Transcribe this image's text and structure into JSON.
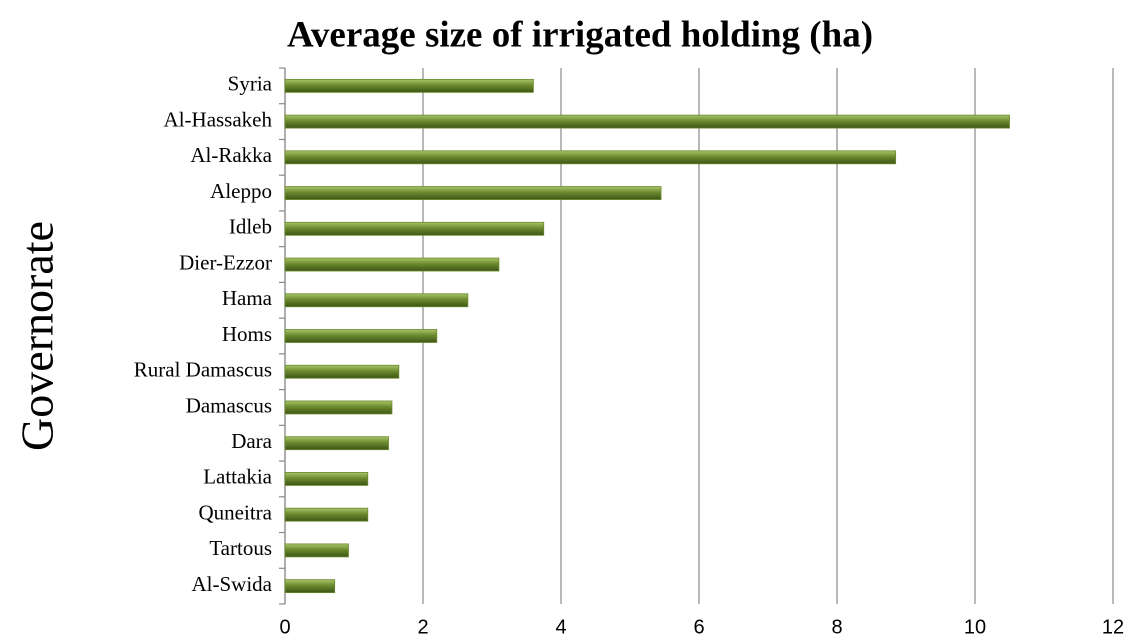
{
  "chart_data": {
    "type": "bar",
    "orientation": "horizontal",
    "title": "Average size of irrigated holding (ha)",
    "y_label": "Governorate",
    "categories": [
      "Syria",
      "Al-Hassakeh",
      "Al-Rakka",
      "Aleppo",
      "Idleb",
      "Dier-Ezzor",
      "Hama",
      "Homs",
      "Rural Damascus",
      "Damascus",
      "Dara",
      "Lattakia",
      "Quneitra",
      "Tartous",
      "Al-Swida"
    ],
    "values": [
      3.6,
      10.5,
      8.85,
      5.45,
      3.75,
      3.1,
      2.65,
      2.2,
      1.65,
      1.55,
      1.5,
      1.2,
      1.2,
      0.92,
      0.72
    ],
    "color": "#6b8a2e",
    "xlim": [
      0,
      12
    ],
    "xticks": [
      0,
      2,
      4,
      6,
      8,
      10,
      12
    ],
    "grid": true
  }
}
